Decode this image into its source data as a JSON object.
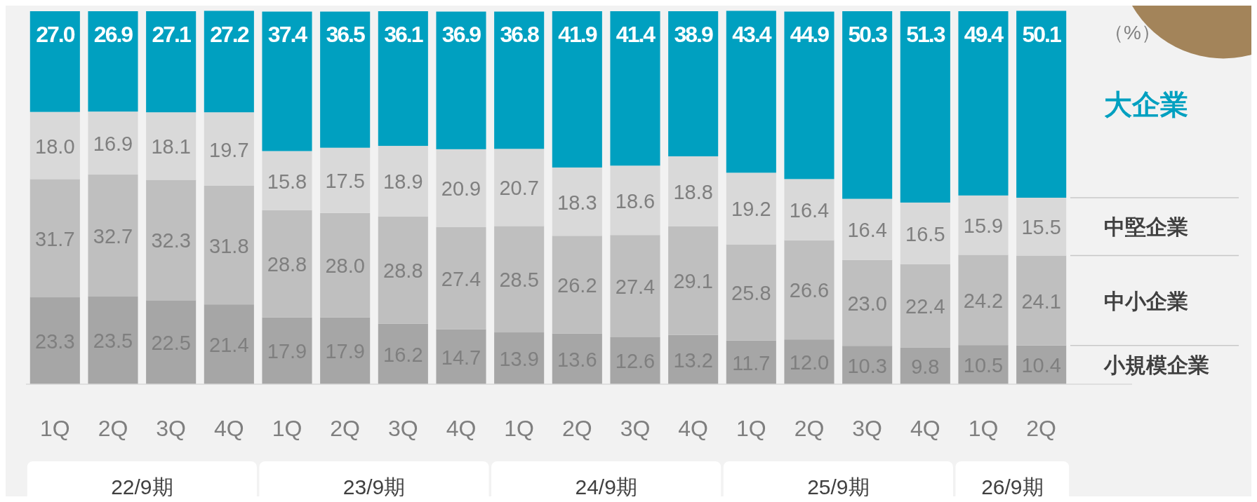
{
  "chart_data": {
    "type": "bar",
    "stacked": true,
    "legend": "right",
    "ylabel": "（%）",
    "categories": [
      "1Q",
      "2Q",
      "3Q",
      "4Q",
      "1Q",
      "2Q",
      "3Q",
      "4Q",
      "1Q",
      "2Q",
      "3Q",
      "4Q",
      "1Q",
      "2Q",
      "3Q",
      "4Q",
      "1Q",
      "2Q"
    ],
    "annotations": [
      "22/9期",
      "23/9期",
      "24/9期",
      "25/9期",
      "26/9期"
    ],
    "ylim": [
      0,
      100
    ],
    "series": [
      {
        "name": "小規模企業",
        "color": "#a6a6a6",
        "values": [
          23.3,
          23.5,
          22.5,
          21.4,
          17.9,
          17.9,
          16.2,
          14.7,
          13.9,
          13.6,
          12.6,
          13.2,
          11.7,
          12.0,
          10.3,
          9.8,
          10.5,
          10.4
        ],
        "value_labels": [
          "23.3",
          "23.5",
          "22.5",
          "21.4",
          "17.9",
          "17.9",
          "16.2",
          "14.7",
          "13.9",
          "13.6",
          "12.6",
          "13.2",
          "11.7",
          "12.0",
          "10.3",
          "9.8",
          "10.5",
          "10.4"
        ]
      },
      {
        "name": "中小企業",
        "color": "#bfbfbf",
        "values": [
          31.7,
          32.7,
          32.3,
          31.8,
          28.8,
          28.0,
          28.8,
          27.4,
          28.5,
          26.2,
          27.4,
          29.1,
          25.8,
          26.6,
          23.0,
          22.4,
          24.2,
          24.1
        ],
        "value_labels": [
          "31.7",
          "32.7",
          "32.3",
          "31.8",
          "28.8",
          "28.0",
          "28.8",
          "27.4",
          "28.5",
          "26.2",
          "27.4",
          "29.1",
          "25.8",
          "26.6",
          "23.0",
          "22.4",
          "24.2",
          "24.1"
        ]
      },
      {
        "name": "中堅企業",
        "color": "#d9d9d9",
        "values": [
          18.0,
          16.9,
          18.1,
          19.7,
          15.8,
          17.5,
          18.9,
          20.9,
          20.7,
          18.3,
          18.6,
          18.8,
          19.2,
          16.4,
          16.4,
          16.5,
          15.9,
          15.5
        ],
        "value_labels": [
          "18.0",
          "16.9",
          "18.1",
          "19.7",
          "15.8",
          "17.5",
          "18.9",
          "20.9",
          "20.7",
          "18.3",
          "18.6",
          "18.8",
          "19.2",
          "16.4",
          "16.4",
          "16.5",
          "15.9",
          "15.5"
        ]
      },
      {
        "name": "大企業",
        "color": "#00a0c0",
        "values": [
          27.0,
          26.9,
          27.1,
          27.2,
          37.4,
          36.5,
          36.1,
          36.9,
          36.8,
          41.9,
          41.4,
          38.9,
          43.4,
          44.9,
          50.3,
          51.3,
          49.4,
          50.1
        ],
        "value_labels": [
          "27.0",
          "26.9",
          "27.1",
          "27.2",
          "37.4",
          "36.5",
          "36.1",
          "36.9",
          "36.8",
          "41.9",
          "41.4",
          "38.9",
          "43.4",
          "44.9",
          "50.3",
          "51.3",
          "49.4",
          "50.1"
        ]
      }
    ]
  }
}
